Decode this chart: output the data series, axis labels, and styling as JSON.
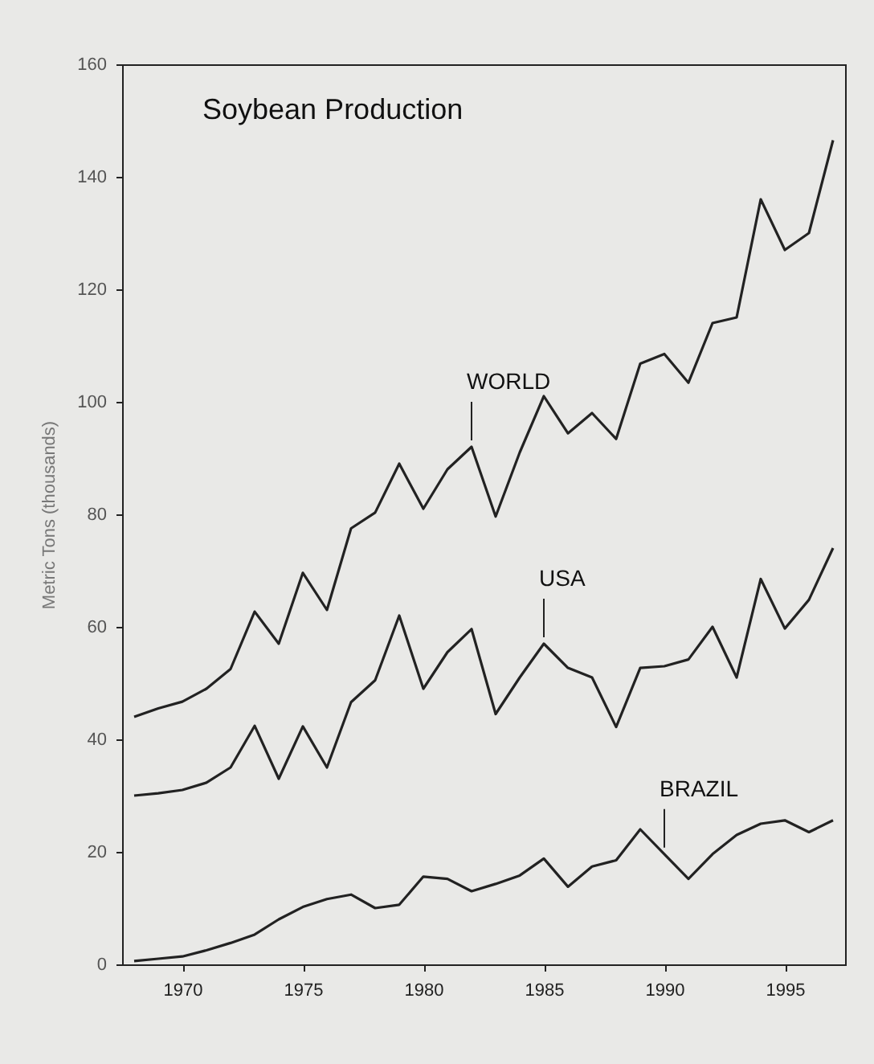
{
  "chart_data": {
    "type": "line",
    "title": "Soybean Production",
    "ylabel": "Metric Tons (thousands)",
    "x": [
      1968,
      1969,
      1970,
      1971,
      1972,
      1973,
      1974,
      1975,
      1976,
      1977,
      1978,
      1979,
      1980,
      1981,
      1982,
      1983,
      1984,
      1985,
      1986,
      1987,
      1988,
      1989,
      1990,
      1991,
      1992,
      1993,
      1994,
      1995,
      1996,
      1997
    ],
    "series": [
      {
        "color": "#222222",
        "values": [
          44,
          45.5,
          46.7,
          49,
          52.5,
          62.7,
          57,
          69.6,
          63,
          77.5,
          80.3,
          89,
          81,
          88,
          92,
          79.6,
          91,
          101,
          94.4,
          98,
          93.4,
          106.8,
          108.5,
          103.4,
          114,
          115,
          136,
          127,
          130,
          146.5
        ]
      },
      {
        "color": "#222222",
        "values": [
          30,
          30.4,
          31,
          32.3,
          35,
          42.4,
          33,
          42.3,
          35,
          46.6,
          50.5,
          62,
          49,
          55.5,
          59.6,
          44.5,
          51,
          57,
          52.7,
          51,
          42.2,
          52.7,
          53,
          54.2,
          60,
          51,
          68.5,
          59.7,
          64.8,
          74
        ]
      },
      {
        "color": "#222222",
        "values": [
          0.6,
          1,
          1.4,
          2.5,
          3.8,
          5.3,
          8,
          10.2,
          11.6,
          12.4,
          10,
          10.6,
          15.6,
          15.2,
          13,
          14.3,
          15.8,
          18.8,
          13.8,
          17.4,
          18.5,
          24,
          19.6,
          15.2,
          19.6,
          23,
          25,
          25.6,
          23.5,
          25.6
        ]
      }
    ],
    "annotations": [
      {
        "text": "WORLD",
        "x": 1982,
        "y": 92
      },
      {
        "text": "USA",
        "x": 1985,
        "y": 57
      },
      {
        "text": "BRAZIL",
        "x": 1990,
        "y": 19.6
      }
    ],
    "xlim": [
      1967.5,
      1997.5
    ],
    "xticks": [
      1970,
      1975,
      1980,
      1985,
      1990,
      1995
    ],
    "ylim": [
      0,
      160
    ],
    "yticks": [
      0,
      20,
      40,
      60,
      80,
      100,
      120,
      140,
      160
    ],
    "grid": false
  }
}
